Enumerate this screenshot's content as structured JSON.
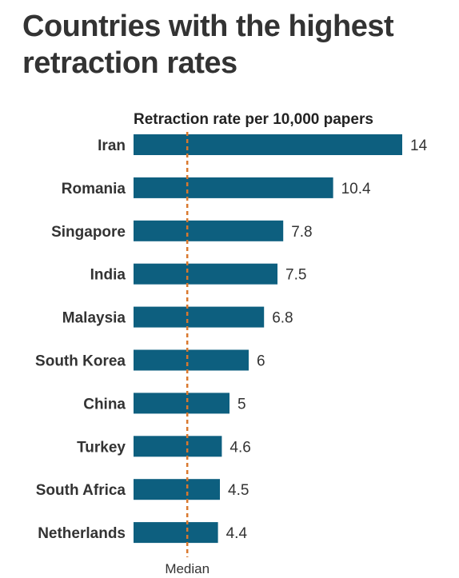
{
  "title": "Countries with the highest retraction rates",
  "chart_data": {
    "type": "bar",
    "orientation": "horizontal",
    "title": "Countries with the highest retraction rates",
    "value_axis_title": "Retraction rate per 10,000 papers",
    "categories": [
      "Iran",
      "Romania",
      "Singapore",
      "India",
      "Malaysia",
      "South Korea",
      "China",
      "Turkey",
      "South Africa",
      "Netherlands"
    ],
    "values": [
      14,
      10.4,
      7.8,
      7.5,
      6.8,
      6,
      5,
      4.6,
      4.5,
      4.4
    ],
    "value_labels": [
      "14",
      "10.4",
      "7.8",
      "7.5",
      "6.8",
      "6",
      "5",
      "4.6",
      "4.5",
      "4.4"
    ],
    "xlim": [
      0,
      14
    ],
    "reference_line": {
      "label": "Median",
      "value": 2.8,
      "style": "dashed"
    },
    "grid": false,
    "colors": {
      "bar": "#0d5f7f",
      "median_line": "#d9782e"
    }
  }
}
